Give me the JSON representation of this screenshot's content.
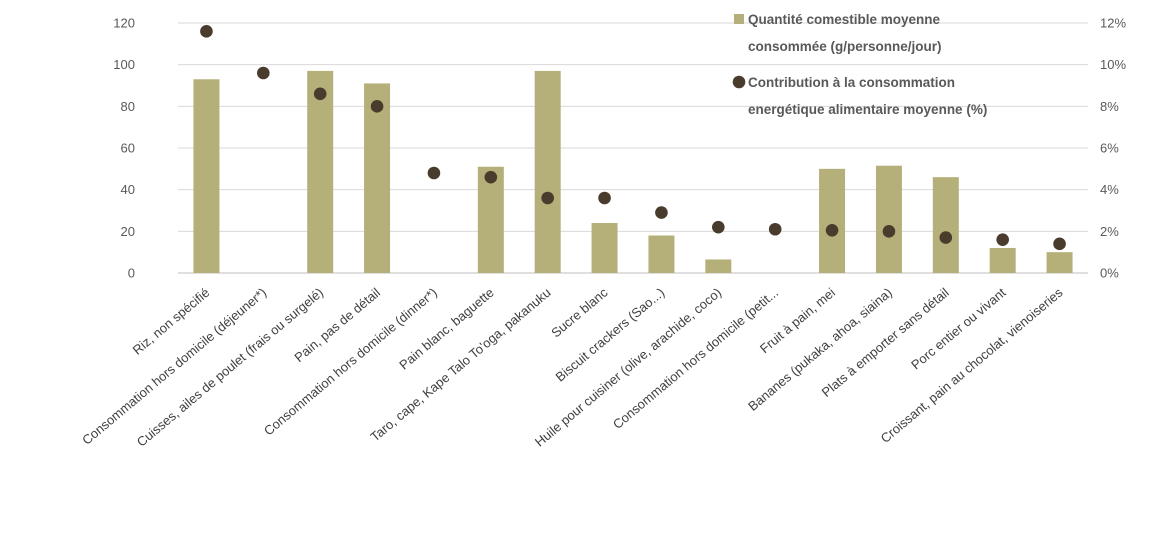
{
  "chart_data": {
    "type": "bar",
    "categories": [
      "Riz, non spécifié",
      "Consommation hors domicile (déjeuner*)",
      "Cuisses, ailes de poulet (frais ou surgelé)",
      "Pain, pas de détail",
      "Consommation hors domicile (dinner*)",
      "Pain blanc, baguette",
      "Taro, cape, Kape Talo To'oga, pakanuku",
      "Sucre blanc",
      "Biscuit crackers (Sao...)",
      "Huile pour cuisiner (olive, arachide, coco)",
      "Consommation hors domicile (petit...",
      "Fruit à pain, mei",
      "Bananes (pukaka, ahoa, siaina)",
      "Plats à emporter sans détail",
      "Porc entier ou vivant",
      "Croissant, pain au chocolat, vienoiseries"
    ],
    "series": [
      {
        "name": "Quantité comestible moyenne consommée (g/personne/jour)",
        "kind": "bar",
        "axis": "left",
        "color": "#b5b07a",
        "values": [
          93,
          0,
          97,
          91,
          0,
          51,
          97,
          24,
          18,
          6.5,
          0,
          50,
          51.5,
          46,
          12,
          10
        ]
      },
      {
        "name": "Contribution à la consommation energétique alimentaire moyenne (%)",
        "kind": "point",
        "axis": "right",
        "color": "#4a3c2c",
        "values": [
          11.6,
          9.6,
          8.6,
          8.0,
          4.8,
          4.6,
          3.6,
          3.6,
          2.9,
          2.2,
          2.1,
          2.05,
          2.0,
          1.7,
          1.6,
          1.4
        ]
      }
    ],
    "legend": {
      "bar_lines": [
        "Quantité comestible moyenne",
        "consommée (g/personne/jour)"
      ],
      "point_lines": [
        "Contribution à la consommation",
        "energétique alimentaire moyenne (%)"
      ],
      "position": "top-right"
    },
    "y_left": {
      "ylim": [
        0,
        120
      ],
      "ticks": [
        "0",
        "20",
        "40",
        "60",
        "80",
        "100",
        "120"
      ]
    },
    "y_right": {
      "ylim": [
        0,
        12
      ],
      "ticks": [
        "0%",
        "2%",
        "4%",
        "6%",
        "8%",
        "10%",
        "12%"
      ]
    },
    "grid": true
  }
}
